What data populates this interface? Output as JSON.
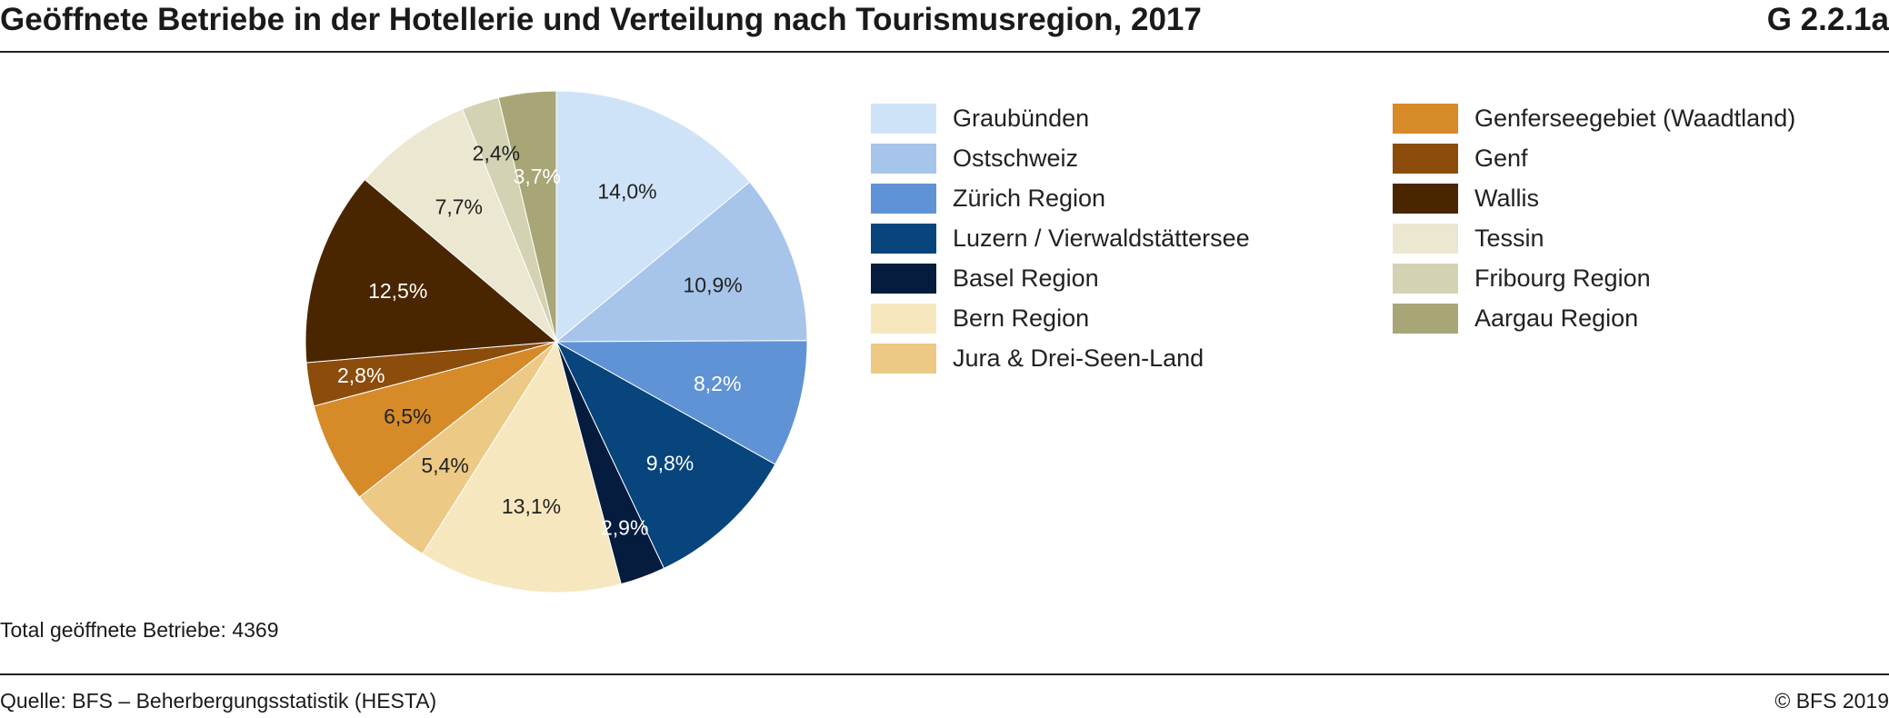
{
  "header": {
    "title": "Geöffnete Betriebe in der Hotellerie und Verteilung nach Tourismusregion, 2017",
    "code": "G 2.2.1a"
  },
  "chart_data": {
    "type": "pie",
    "title": "Geöffnete Betriebe in der Hotellerie und Verteilung nach Tourismusregion, 2017",
    "start_angle_deg": 0,
    "direction": "clockwise",
    "slices": [
      {
        "name": "Graubünden",
        "value": 14.0,
        "label": "14,0%",
        "color": "#cfe3f8",
        "label_color": "#222222"
      },
      {
        "name": "Ostschweiz",
        "value": 10.9,
        "label": "10,9%",
        "color": "#a7c5eb",
        "label_color": "#222222"
      },
      {
        "name": "Zürich Region",
        "value": 8.2,
        "label": "8,2%",
        "color": "#6093d5",
        "label_color": "#ffffff"
      },
      {
        "name": "Luzern / Vierwaldstättersee",
        "value": 9.8,
        "label": "9,8%",
        "color": "#07457c",
        "label_color": "#ffffff"
      },
      {
        "name": "Basel Region",
        "value": 2.9,
        "label": "2,9%",
        "color": "#051c3f",
        "label_color": "#ffffff"
      },
      {
        "name": "Bern Region",
        "value": 13.1,
        "label": "13,1%",
        "color": "#f6e7bf",
        "label_color": "#222222"
      },
      {
        "name": "Jura & Drei-Seen-Land",
        "value": 5.4,
        "label": "5,4%",
        "color": "#ecc985",
        "label_color": "#222222"
      },
      {
        "name": "Genferseegebiet (Waadtland)",
        "value": 6.5,
        "label": "6,5%",
        "color": "#d68b28",
        "label_color": "#222222"
      },
      {
        "name": "Genf",
        "value": 2.8,
        "label": "2,8%",
        "color": "#8b4c0c",
        "label_color": "#ffffff"
      },
      {
        "name": "Wallis",
        "value": 12.5,
        "label": "12,5%",
        "color": "#4a2600",
        "label_color": "#ffffff"
      },
      {
        "name": "Tessin",
        "value": 7.7,
        "label": "7,7%",
        "color": "#ebe7d1",
        "label_color": "#222222"
      },
      {
        "name": "Fribourg Region",
        "value": 2.4,
        "label": "2,4%",
        "color": "#d3d2b3",
        "label_color": "#222222"
      },
      {
        "name": "Aargau Region",
        "value": 3.7,
        "label": "3,7%",
        "color": "#a8a676",
        "label_color": "#ffffff"
      }
    ],
    "legend_placement": "right"
  },
  "legend": {
    "col1": [
      {
        "label": "Graubünden",
        "color": "#cfe3f8"
      },
      {
        "label": "Ostschweiz",
        "color": "#a7c5eb"
      },
      {
        "label": "Zürich Region",
        "color": "#6093d5"
      },
      {
        "label": "Luzern / Vierwaldstättersee",
        "color": "#07457c"
      },
      {
        "label": "Basel Region",
        "color": "#051c3f"
      },
      {
        "label": "Bern Region",
        "color": "#f6e7bf"
      },
      {
        "label": "Jura & Drei-Seen-Land",
        "color": "#ecc985"
      }
    ],
    "col2": [
      {
        "label": "Genferseegebiet (Waadtland)",
        "color": "#d68b28"
      },
      {
        "label": "Genf",
        "color": "#8b4c0c"
      },
      {
        "label": "Wallis",
        "color": "#4a2600"
      },
      {
        "label": "Tessin",
        "color": "#ebe7d1"
      },
      {
        "label": "Fribourg Region",
        "color": "#d3d2b3"
      },
      {
        "label": "Aargau Region",
        "color": "#a8a676"
      }
    ]
  },
  "footer": {
    "total": "Total geöffnete Betriebe: 4369",
    "source": "Quelle: BFS – Beherbergungsstatistik (HESTA)",
    "copyright": "© BFS 2019"
  }
}
